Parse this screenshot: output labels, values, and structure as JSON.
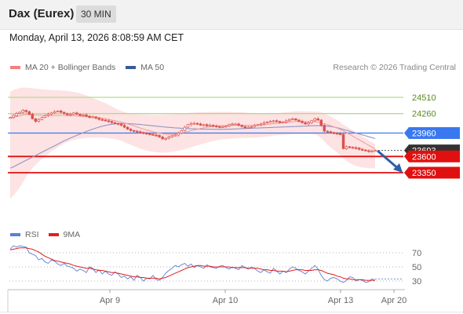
{
  "header": {
    "title": "Dax (Eurex)",
    "timeframe": "30 MIN"
  },
  "datetime": "Monday, April 13, 2026 8:08:59 AM CET",
  "legend": {
    "bb_label": "MA 20 + Bollinger Bands",
    "ma50_label": "MA 50",
    "research": "Research © 2026 Trading Central"
  },
  "rsi_legend": {
    "rsi_label": "RSI",
    "ma_label": "9MA"
  },
  "colors": {
    "candle": "#d9534f",
    "bb_fill": "#fde3e3",
    "ma20": "#f0a0a0",
    "ma50": "#8f96c8",
    "resistance": "#b8d98c",
    "pivot": "#3a78f0",
    "support": "#e01010",
    "arrow": "#2e5fa8",
    "rsi": "#5b7fd6",
    "rsi_ma": "#e02020"
  },
  "chart_data": [
    {
      "type": "candlestick",
      "x_labels": [
        "Apr 9",
        "Apr 10",
        "Apr 13",
        "Apr 20"
      ],
      "levels": [
        {
          "label": "24510",
          "value": 24510,
          "kind": "resistance"
        },
        {
          "label": "24260",
          "value": 24260,
          "kind": "resistance"
        },
        {
          "label": "23960",
          "value": 23960,
          "kind": "pivot"
        },
        {
          "label": "23693",
          "value": 23693,
          "kind": "last"
        },
        {
          "label": "23600",
          "value": 23600,
          "kind": "support"
        },
        {
          "label": "23350",
          "value": 23350,
          "kind": "support"
        }
      ],
      "ylim": [
        22700,
        24900
      ],
      "close": [
        24200,
        24230,
        24260,
        24280,
        24310,
        24290,
        24250,
        24180,
        24140,
        24170,
        24200,
        24230,
        24250,
        24270,
        24290,
        24300,
        24280,
        24260,
        24240,
        24250,
        24270,
        24250,
        24230,
        24240,
        24220,
        24200,
        24210,
        24190,
        24170,
        24160,
        24150,
        24140,
        24120,
        24110,
        24100,
        24080,
        24050,
        24020,
        24000,
        23990,
        23980,
        23970,
        23960,
        23950,
        23940,
        23930,
        23925,
        23900,
        23870,
        23880,
        23900,
        23920,
        23930,
        23960,
        24000,
        24050,
        24090,
        24110,
        24110,
        24100,
        24080,
        24090,
        24070,
        24080,
        24070,
        24060,
        24050,
        24060,
        24070,
        24090,
        24100,
        24100,
        24080,
        24060,
        24040,
        24050,
        24060,
        24080,
        24090,
        24100,
        24120,
        24130,
        24140,
        24150,
        24140,
        24120,
        24130,
        24150,
        24170,
        24180,
        24160,
        24140,
        24120,
        24100,
        24120,
        24150,
        24180,
        24160,
        24080,
        23990,
        23980,
        23970,
        23960,
        23950,
        23940,
        23720,
        23750,
        23740,
        23735,
        23730,
        23710,
        23700,
        23690,
        23680,
        23685,
        23693
      ],
      "ma20": [
        24190,
        24200,
        24215,
        24225,
        24240,
        24245,
        24245,
        24242,
        24238,
        24235,
        24232,
        24230,
        24228,
        24230,
        24232,
        24232,
        24232,
        24232,
        24230,
        24228,
        24226,
        24224,
        24221,
        24218,
        24215,
        24210,
        24205,
        24200,
        24195,
        24188,
        24180,
        24170,
        24160,
        24150,
        24140,
        24128,
        24116,
        24100,
        24086,
        24070,
        24055,
        24038,
        24022,
        24008,
        23994,
        23980,
        23968,
        23958,
        23950,
        23944,
        23940,
        23940,
        23945,
        23952,
        23962,
        23972,
        23984,
        23996,
        24008,
        24020,
        24030,
        24040,
        24048,
        24056,
        24062,
        24068,
        24072,
        24075,
        24076,
        24078,
        24080,
        24082,
        24082,
        24082,
        24080,
        24078,
        24078,
        24078,
        24080,
        24084,
        24088,
        24094,
        24100,
        24106,
        24110,
        24114,
        24118,
        24122,
        24128,
        24134,
        24138,
        24140,
        24140,
        24138,
        24135,
        24133,
        24133,
        24128,
        24120,
        24104,
        24088,
        24072,
        24055,
        24038,
        24020,
        23995,
        23968,
        23940,
        23912,
        23884,
        23856,
        23828,
        23800,
        23772,
        23744,
        23718
      ],
      "bb_upper": [
        24600,
        24620,
        24640,
        24650,
        24660,
        24660,
        24655,
        24650,
        24645,
        24640,
        24635,
        24630,
        24625,
        24622,
        24620,
        24618,
        24615,
        24612,
        24608,
        24600,
        24595,
        24585,
        24570,
        24555,
        24540,
        24520,
        24500,
        24480,
        24460,
        24440,
        24420,
        24395,
        24370,
        24345,
        24320,
        24300,
        24285,
        24270,
        24262,
        24255,
        24250,
        24248,
        24246,
        24244,
        24242,
        24240,
        24240,
        24240,
        24242,
        24244,
        24246,
        24248,
        24252,
        24258,
        24262,
        24266,
        24270,
        24274,
        24278,
        24280,
        24282,
        24284,
        24284,
        24285,
        24286,
        24286,
        24286,
        24286,
        24286,
        24286,
        24285,
        24284,
        24282,
        24280,
        24276,
        24272,
        24268,
        24264,
        24262,
        24260,
        24260,
        24260,
        24262,
        24264,
        24268,
        24272,
        24276,
        24280,
        24286,
        24290,
        24294,
        24296,
        24296,
        24294,
        24292,
        24290,
        24290,
        24288,
        24280,
        24260,
        24240,
        24215,
        24190,
        24160,
        24130,
        24090,
        24060,
        24030,
        24000,
        23970,
        23940,
        23910,
        23880,
        23850,
        23820,
        23790
      ],
      "bb_lower": [
        22950,
        23000,
        23060,
        23120,
        23200,
        23280,
        23360,
        23420,
        23470,
        23520,
        23560,
        23600,
        23640,
        23680,
        23710,
        23740,
        23770,
        23800,
        23820,
        23840,
        23855,
        23865,
        23872,
        23878,
        23883,
        23886,
        23888,
        23890,
        23890,
        23888,
        23884,
        23880,
        23874,
        23866,
        23856,
        23840,
        23820,
        23800,
        23780,
        23760,
        23740,
        23720,
        23705,
        23690,
        23680,
        23672,
        23665,
        23660,
        23658,
        23660,
        23665,
        23672,
        23680,
        23690,
        23700,
        23712,
        23726,
        23740,
        23756,
        23770,
        23786,
        23800,
        23814,
        23826,
        23838,
        23850,
        23860,
        23866,
        23866,
        23870,
        23875,
        23880,
        23882,
        23884,
        23884,
        23884,
        23886,
        23888,
        23892,
        23896,
        23900,
        23906,
        23912,
        23920,
        23926,
        23930,
        23934,
        23938,
        23940,
        23942,
        23944,
        23946,
        23948,
        23948,
        23946,
        23944,
        23942,
        23920,
        23880,
        23830,
        23780,
        23740,
        23700,
        23660,
        23620,
        23570,
        23530,
        23500,
        23475,
        23455,
        23440,
        23430,
        23425,
        23420,
        23418,
        23415
      ],
      "ma50": [
        23420,
        23440,
        23465,
        23490,
        23515,
        23540,
        23565,
        23590,
        23615,
        23640,
        23665,
        23690,
        23715,
        23740,
        23765,
        23790,
        23815,
        23840,
        23862,
        23885,
        23905,
        23925,
        23945,
        23965,
        23985,
        24003,
        24020,
        24037,
        24052,
        24066,
        24078,
        24088,
        24096,
        24102,
        24106,
        24108,
        24108,
        24106,
        24103,
        24100,
        24096,
        24092,
        24087,
        24082,
        24077,
        24072,
        24067,
        24062,
        24057,
        24052,
        24048,
        24044,
        24040,
        24037,
        24034,
        24031,
        24029,
        24027,
        24025,
        24023,
        24022,
        24021,
        24020,
        24019,
        24018,
        24018,
        24018,
        24018,
        24019,
        24020,
        24022,
        24024,
        24026,
        24028,
        24030,
        24032,
        24034,
        24036,
        24038,
        24040,
        24042,
        24044,
        24046,
        24048,
        24050,
        24052,
        24054,
        24056,
        24058,
        24060,
        24062,
        24064,
        24066,
        24068,
        24070,
        24072,
        24074,
        24074,
        24073,
        24070,
        24066,
        24060,
        24052,
        24042,
        24030,
        24016,
        24002,
        23988,
        23974,
        23960,
        23946,
        23932,
        23918,
        23904,
        23890,
        23876
      ]
    },
    {
      "type": "line",
      "title": "RSI",
      "yticks": [
        70,
        50,
        30
      ],
      "ylim": [
        15,
        85
      ],
      "rsi": [
        75,
        80,
        78,
        80,
        79,
        78,
        70,
        68,
        66,
        60,
        62,
        57,
        55,
        60,
        58,
        54,
        52,
        55,
        51,
        50,
        48,
        44,
        47,
        45,
        42,
        50,
        48,
        42,
        46,
        40,
        44,
        40,
        38,
        43,
        40,
        35,
        37,
        33,
        36,
        31,
        38,
        35,
        30,
        34,
        33,
        38,
        32,
        31,
        35,
        41,
        45,
        48,
        52,
        50,
        53,
        55,
        51,
        54,
        49,
        52,
        50,
        48,
        53,
        50,
        49,
        48,
        51,
        52,
        49,
        47,
        50,
        48,
        46,
        52,
        49,
        47,
        50,
        48,
        44,
        42,
        46,
        43,
        41,
        48,
        44,
        40,
        44,
        42,
        47,
        50,
        48,
        45,
        43,
        40,
        44,
        48,
        52,
        47,
        38,
        32,
        30,
        34,
        35,
        33,
        30,
        28,
        31,
        36,
        35,
        30,
        32,
        31,
        28,
        29,
        33,
        31
      ],
      "ma9": [
        74,
        75,
        76,
        77,
        77,
        77,
        76,
        75,
        73,
        71,
        68,
        65,
        63,
        61,
        59,
        58,
        57,
        56,
        55,
        54,
        52,
        51,
        50,
        49,
        48,
        48,
        47,
        46,
        45,
        45,
        44,
        43,
        42,
        42,
        41,
        40,
        39,
        38,
        37,
        36,
        36,
        35,
        35,
        34,
        34,
        34,
        34,
        33,
        34,
        35,
        37,
        39,
        41,
        43,
        45,
        47,
        49,
        50,
        51,
        52,
        52,
        51,
        51,
        51,
        50,
        50,
        50,
        50,
        50,
        50,
        49,
        49,
        49,
        49,
        49,
        48,
        48,
        48,
        48,
        47,
        46,
        46,
        45,
        45,
        44,
        44,
        44,
        43,
        44,
        45,
        46,
        46,
        46,
        45,
        45,
        45,
        46,
        46,
        45,
        43,
        41,
        40,
        39,
        37,
        36,
        34,
        33,
        33,
        32,
        32,
        32,
        32,
        31,
        31,
        31,
        31
      ]
    }
  ]
}
